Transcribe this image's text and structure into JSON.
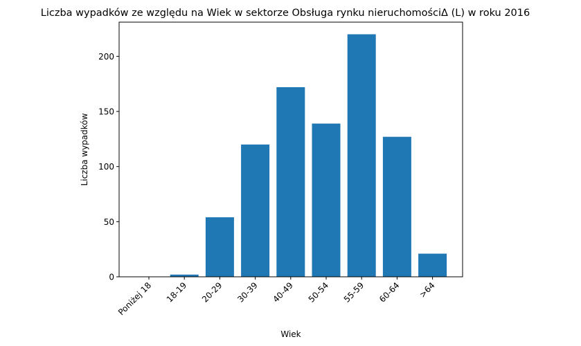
{
  "chart_data": {
    "type": "bar",
    "title": "Liczba wypadków ze względu na Wiek w sektorze Obsługa rynku nieruchomościΔ  (L) w roku 2016",
    "xlabel": "Wiek",
    "ylabel": "Liczba wypadków",
    "categories": [
      "Poniżej 18",
      "18-19",
      "20-29",
      "30-39",
      "40-49",
      "50-54",
      "55-59",
      "60-64",
      ">64"
    ],
    "values": [
      0,
      2,
      54,
      120,
      172,
      139,
      220,
      127,
      21
    ],
    "ylim": [
      0,
      231
    ],
    "yticks": [
      0,
      50,
      100,
      150,
      200
    ],
    "bar_color": "#1f77b4",
    "grid": false,
    "legend": "none"
  }
}
